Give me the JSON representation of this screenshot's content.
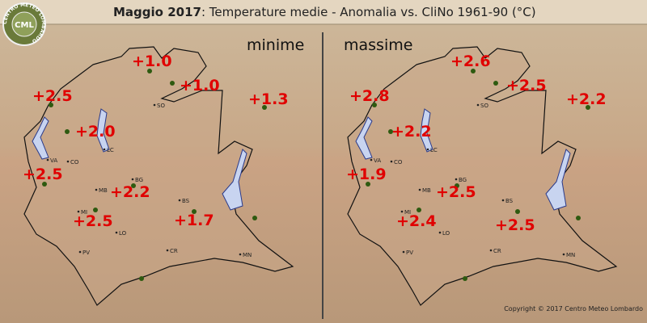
{
  "header": {
    "title_bold": "Maggio 2017",
    "title_rest": ": Temperature medie - Anomalia vs. CliNo 1961-90 (°C)"
  },
  "logo": {
    "text": "CML",
    "ring": "CENTRO METEO LOMBARDO"
  },
  "panels": [
    {
      "label": "minime",
      "anomalies": [
        "+1.0",
        "+1.0",
        "+2.5",
        "+1.3",
        "+2.0",
        "+2.5",
        "+2.2",
        "+2.5",
        "+1.7"
      ]
    },
    {
      "label": "massime",
      "anomalies": [
        "+2.6",
        "+2.5",
        "+2.8",
        "+2.2",
        "+2.2",
        "+1.9",
        "+2.5",
        "+2.4",
        "+2.5"
      ]
    }
  ],
  "cities": [
    "SO",
    "LC",
    "CO",
    "VA",
    "BG",
    "MB",
    "BS",
    "MI",
    "LO",
    "CR",
    "PV",
    "MN"
  ],
  "copyright": "Copyright © 2017 Centro Meteo Lombardo"
}
